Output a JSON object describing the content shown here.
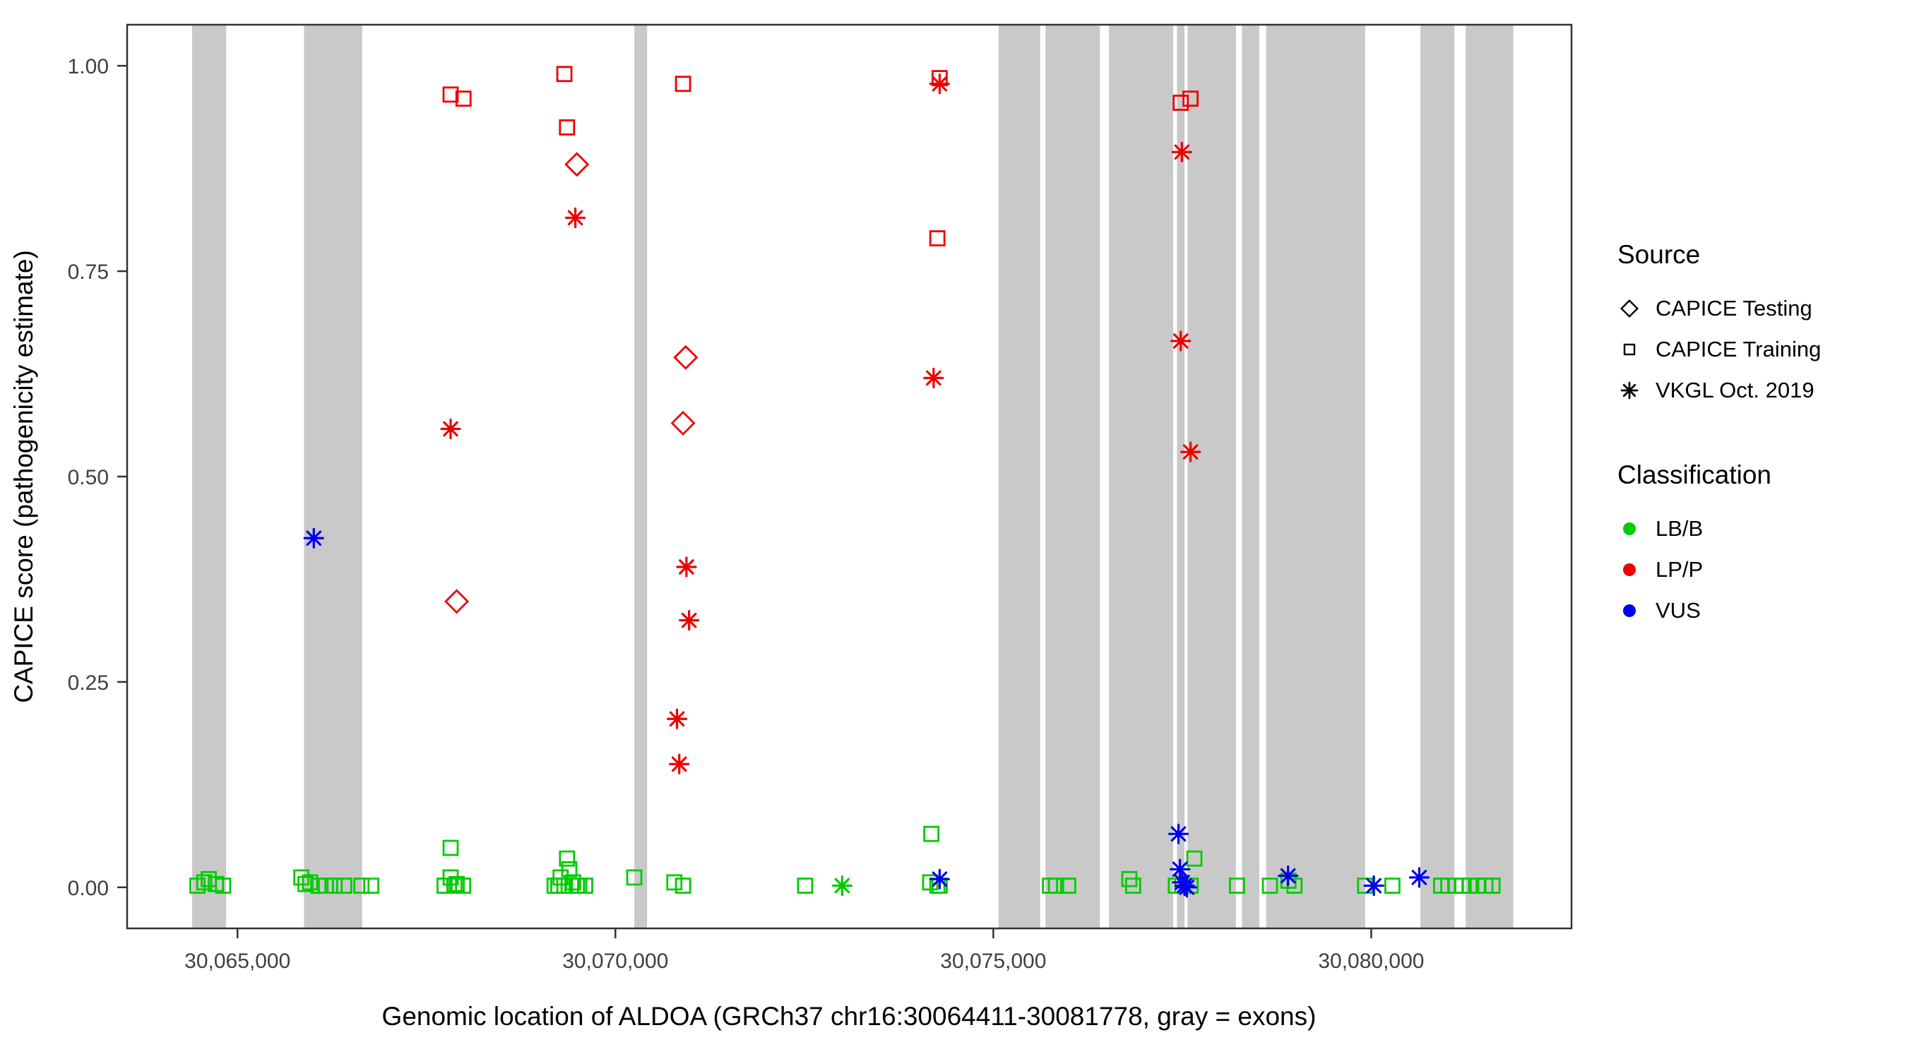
{
  "chart_data": {
    "type": "scatter",
    "title": "",
    "xlabel": "Genomic location of ALDOA (GRCh37 chr16:30064411-30081778, gray = exons)",
    "ylabel": "CAPICE score (pathogenicity estimate)",
    "xlim": [
      30063540,
      30082650
    ],
    "ylim": [
      -0.05,
      1.05
    ],
    "grid": false,
    "exon_color": "#c9c9c9",
    "x_ticks": [
      {
        "value": 30065000,
        "label": "30,065,000"
      },
      {
        "value": 30070000,
        "label": "30,070,000"
      },
      {
        "value": 30075000,
        "label": "30,075,000"
      },
      {
        "value": 30080000,
        "label": "30,080,000"
      }
    ],
    "y_ticks": [
      {
        "value": 0.0,
        "label": "0.00"
      },
      {
        "value": 0.25,
        "label": "0.25"
      },
      {
        "value": 0.5,
        "label": "0.50"
      },
      {
        "value": 0.75,
        "label": "0.75"
      },
      {
        "value": 1.0,
        "label": "1.00"
      }
    ],
    "exons": [
      [
        30064400,
        30064850
      ],
      [
        30065880,
        30066650
      ],
      [
        30070250,
        30070420
      ],
      [
        30075070,
        30075620
      ],
      [
        30075690,
        30076410
      ],
      [
        30076530,
        30077380
      ],
      [
        30077430,
        30077530
      ],
      [
        30077570,
        30078210
      ],
      [
        30078290,
        30078520
      ],
      [
        30078610,
        30079920
      ],
      [
        30080650,
        30081100
      ],
      [
        30081250,
        30081880
      ]
    ],
    "series": [
      {
        "name": "LB/B",
        "color": "#00cc00",
        "points": [
          [
            30064470,
            0.002,
            "square"
          ],
          [
            30064560,
            0.006,
            "square"
          ],
          [
            30064620,
            0.01,
            "square"
          ],
          [
            30064715,
            0.004,
            "square"
          ],
          [
            30064810,
            0.002,
            "square"
          ],
          [
            30065845,
            0.012,
            "square"
          ],
          [
            30065900,
            0.004,
            "square"
          ],
          [
            30065960,
            0.006,
            "square"
          ],
          [
            30066070,
            0.002,
            "square"
          ],
          [
            30066170,
            0.002,
            "square"
          ],
          [
            30066285,
            0.002,
            "square"
          ],
          [
            30066412,
            0.002,
            "square"
          ],
          [
            30066640,
            0.002,
            "square"
          ],
          [
            30066770,
            0.002,
            "square"
          ],
          [
            30067740,
            0.002,
            "square"
          ],
          [
            30067820,
            0.048,
            "square"
          ],
          [
            30067820,
            0.012,
            "square"
          ],
          [
            30067870,
            0.002,
            "square"
          ],
          [
            30067900,
            0.004,
            "square"
          ],
          [
            30067985,
            0.002,
            "square"
          ],
          [
            30069195,
            0.002,
            "square"
          ],
          [
            30069245,
            0.002,
            "square"
          ],
          [
            30069275,
            0.012,
            "square"
          ],
          [
            30069325,
            0.002,
            "square"
          ],
          [
            30069360,
            0.035,
            "square"
          ],
          [
            30069390,
            0.022,
            "square"
          ],
          [
            30069440,
            0.006,
            "square"
          ],
          [
            30069490,
            0.002,
            "square"
          ],
          [
            30069520,
            0.002,
            "square"
          ],
          [
            30069600,
            0.002,
            "square"
          ],
          [
            30070250,
            0.012,
            "square"
          ],
          [
            30070780,
            0.006,
            "square"
          ],
          [
            30070895,
            0.002,
            "square"
          ],
          [
            30072510,
            0.002,
            "square"
          ],
          [
            30073000,
            0.002,
            "asterisk"
          ],
          [
            30074180,
            0.065,
            "square"
          ],
          [
            30074165,
            0.006,
            "square"
          ],
          [
            30074260,
            0.002,
            "square"
          ],
          [
            30074290,
            0.002,
            "square"
          ],
          [
            30075750,
            0.002,
            "square"
          ],
          [
            30075830,
            0.002,
            "square"
          ],
          [
            30075990,
            0.002,
            "square"
          ],
          [
            30076800,
            0.01,
            "square"
          ],
          [
            30076850,
            0.002,
            "square"
          ],
          [
            30077415,
            0.002,
            "square"
          ],
          [
            30077500,
            0.002,
            "square"
          ],
          [
            30077660,
            0.035,
            "square"
          ],
          [
            30077610,
            0.002,
            "square"
          ],
          [
            30078225,
            0.002,
            "square"
          ],
          [
            30078660,
            0.002,
            "square"
          ],
          [
            30078905,
            0.008,
            "square"
          ],
          [
            30078985,
            0.002,
            "square"
          ],
          [
            30079920,
            0.002,
            "square"
          ],
          [
            30080280,
            0.002,
            "square"
          ],
          [
            30080925,
            0.002,
            "square"
          ],
          [
            30081020,
            0.002,
            "square"
          ],
          [
            30081120,
            0.002,
            "square"
          ],
          [
            30081200,
            0.002,
            "square"
          ],
          [
            30081300,
            0.002,
            "square"
          ],
          [
            30081410,
            0.002,
            "square"
          ],
          [
            30081510,
            0.002,
            "square"
          ],
          [
            30081605,
            0.002,
            "square"
          ]
        ]
      },
      {
        "name": "LP/P",
        "color": "#ee0000",
        "points": [
          [
            30067820,
            0.965,
            "square"
          ],
          [
            30067990,
            0.96,
            "square"
          ],
          [
            30069325,
            0.99,
            "square"
          ],
          [
            30069360,
            0.925,
            "square"
          ],
          [
            30069490,
            0.88,
            "diamond"
          ],
          [
            30069470,
            0.815,
            "asterisk"
          ],
          [
            30067820,
            0.558,
            "asterisk"
          ],
          [
            30067900,
            0.348,
            "diamond"
          ],
          [
            30070895,
            0.978,
            "square"
          ],
          [
            30070930,
            0.645,
            "diamond"
          ],
          [
            30070895,
            0.565,
            "diamond"
          ],
          [
            30070940,
            0.39,
            "asterisk"
          ],
          [
            30070975,
            0.325,
            "asterisk"
          ],
          [
            30070815,
            0.205,
            "asterisk"
          ],
          [
            30070845,
            0.15,
            "asterisk"
          ],
          [
            30074290,
            0.985,
            "square"
          ],
          [
            30074290,
            0.978,
            "asterisk"
          ],
          [
            30074260,
            0.79,
            "square"
          ],
          [
            30074210,
            0.62,
            "asterisk"
          ],
          [
            30077480,
            0.955,
            "square"
          ],
          [
            30077610,
            0.96,
            "square"
          ],
          [
            30077495,
            0.895,
            "asterisk"
          ],
          [
            30077480,
            0.665,
            "asterisk"
          ],
          [
            30077610,
            0.53,
            "asterisk"
          ]
        ]
      },
      {
        "name": "VUS",
        "color": "#0000ee",
        "points": [
          [
            30066010,
            0.425,
            "asterisk"
          ],
          [
            30074290,
            0.01,
            "asterisk"
          ],
          [
            30077450,
            0.065,
            "asterisk"
          ],
          [
            30077470,
            0.022,
            "asterisk"
          ],
          [
            30077500,
            0.006,
            "asterisk"
          ],
          [
            30077530,
            0.002,
            "asterisk"
          ],
          [
            30077560,
            0.0,
            "asterisk"
          ],
          [
            30078900,
            0.014,
            "asterisk"
          ],
          [
            30080035,
            0.002,
            "asterisk"
          ],
          [
            30080635,
            0.012,
            "asterisk"
          ]
        ]
      }
    ]
  },
  "legend": {
    "source_title": "Source",
    "source_items": [
      {
        "label": "CAPICE Testing",
        "shape": "diamond"
      },
      {
        "label": "CAPICE Training",
        "shape": "square"
      },
      {
        "label": "VKGL Oct. 2019",
        "shape": "asterisk"
      }
    ],
    "classification_title": "Classification",
    "classification_items": [
      {
        "label": "LB/B",
        "color": "#00cc00"
      },
      {
        "label": "LP/P",
        "color": "#ee0000"
      },
      {
        "label": "VUS",
        "color": "#0000ee"
      }
    ]
  }
}
